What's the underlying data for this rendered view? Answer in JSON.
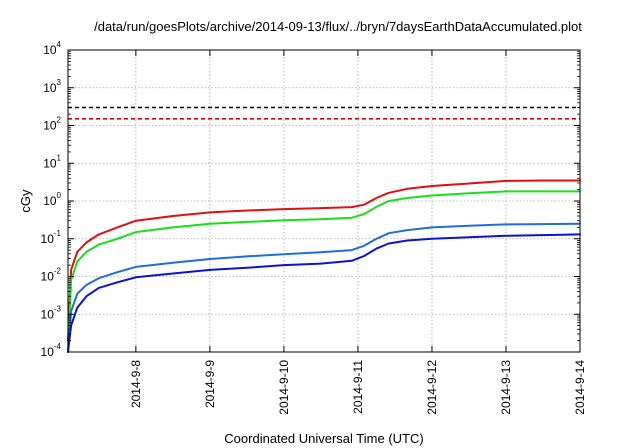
{
  "chart_data": {
    "type": "line",
    "title": "/data/run/goesPlots/archive/2014-09-13/flux/../bryn/7daysEarthDataAccumulated.plot",
    "xlabel": "Coordinated Universal Time (UTC)",
    "ylabel": "cGy",
    "xlim": [
      "2014-09-07T02:00",
      "2014-09-14T00:00"
    ],
    "ylim": [
      0.0001,
      10000
    ],
    "yscale": "log",
    "grid": true,
    "x_ticks": [
      "2014-9-8",
      "2014-9-9",
      "2014-9-10",
      "2014-9-11",
      "2014-9-12",
      "2014-9-13",
      "2014-9-14"
    ],
    "y_ticks": [
      {
        "base": "10",
        "exp": "-4"
      },
      {
        "base": "10",
        "exp": "-3"
      },
      {
        "base": "10",
        "exp": "-2"
      },
      {
        "base": "10",
        "exp": "-1"
      },
      {
        "base": "10",
        "exp": "0"
      },
      {
        "base": "10",
        "exp": "1"
      },
      {
        "base": "10",
        "exp": "2"
      },
      {
        "base": "10",
        "exp": "3"
      },
      {
        "base": "10",
        "exp": "4"
      }
    ],
    "reference_lines": [
      {
        "color": "#000000",
        "style": "dashed",
        "y": 300
      },
      {
        "color": "#e00000",
        "style": "dashed",
        "y": 150
      }
    ],
    "series": [
      {
        "color": "#e01010",
        "points": [
          [
            "2014-09-07T02:00",
            0.0002
          ],
          [
            "2014-09-07T03:00",
            0.015
          ],
          [
            "2014-09-07T05:00",
            0.045
          ],
          [
            "2014-09-07T08:00",
            0.08
          ],
          [
            "2014-09-07T12:00",
            0.13
          ],
          [
            "2014-09-07T18:00",
            0.2
          ],
          [
            "2014-09-08T00:00",
            0.3
          ],
          [
            "2014-09-08T12:00",
            0.4
          ],
          [
            "2014-09-09T00:00",
            0.5
          ],
          [
            "2014-09-09T12:00",
            0.56
          ],
          [
            "2014-09-10T00:00",
            0.61
          ],
          [
            "2014-09-10T12:00",
            0.65
          ],
          [
            "2014-09-10T22:00",
            0.69
          ],
          [
            "2014-09-11T02:00",
            0.8
          ],
          [
            "2014-09-11T06:00",
            1.2
          ],
          [
            "2014-09-11T10:00",
            1.65
          ],
          [
            "2014-09-11T16:00",
            2.1
          ],
          [
            "2014-09-12T00:00",
            2.5
          ],
          [
            "2014-09-12T12:00",
            2.9
          ],
          [
            "2014-09-13T00:00",
            3.4
          ],
          [
            "2014-09-13T12:00",
            3.5
          ],
          [
            "2014-09-14T00:00",
            3.5
          ]
        ]
      },
      {
        "color": "#18e018",
        "points": [
          [
            "2014-09-07T02:00",
            0.0001
          ],
          [
            "2014-09-07T03:00",
            0.008
          ],
          [
            "2014-09-07T05:00",
            0.025
          ],
          [
            "2014-09-07T08:00",
            0.045
          ],
          [
            "2014-09-07T12:00",
            0.07
          ],
          [
            "2014-09-07T18:00",
            0.1
          ],
          [
            "2014-09-08T00:00",
            0.15
          ],
          [
            "2014-09-08T12:00",
            0.2
          ],
          [
            "2014-09-09T00:00",
            0.25
          ],
          [
            "2014-09-09T12:00",
            0.28
          ],
          [
            "2014-09-10T00:00",
            0.31
          ],
          [
            "2014-09-10T12:00",
            0.33
          ],
          [
            "2014-09-10T22:00",
            0.36
          ],
          [
            "2014-09-11T02:00",
            0.45
          ],
          [
            "2014-09-11T06:00",
            0.7
          ],
          [
            "2014-09-11T10:00",
            1.0
          ],
          [
            "2014-09-11T16:00",
            1.2
          ],
          [
            "2014-09-12T00:00",
            1.4
          ],
          [
            "2014-09-12T12:00",
            1.6
          ],
          [
            "2014-09-13T00:00",
            1.8
          ],
          [
            "2014-09-13T12:00",
            1.8
          ],
          [
            "2014-09-14T00:00",
            1.8
          ]
        ]
      },
      {
        "color": "#1e6ee0",
        "points": [
          [
            "2014-09-07T02:00",
            0.0001
          ],
          [
            "2014-09-07T03:00",
            0.0012
          ],
          [
            "2014-09-07T05:00",
            0.0035
          ],
          [
            "2014-09-07T08:00",
            0.006
          ],
          [
            "2014-09-07T12:00",
            0.009
          ],
          [
            "2014-09-07T18:00",
            0.013
          ],
          [
            "2014-09-08T00:00",
            0.018
          ],
          [
            "2014-09-08T12:00",
            0.023
          ],
          [
            "2014-09-09T00:00",
            0.029
          ],
          [
            "2014-09-09T12:00",
            0.034
          ],
          [
            "2014-09-10T00:00",
            0.039
          ],
          [
            "2014-09-10T12:00",
            0.044
          ],
          [
            "2014-09-10T22:00",
            0.05
          ],
          [
            "2014-09-11T02:00",
            0.065
          ],
          [
            "2014-09-11T06:00",
            0.1
          ],
          [
            "2014-09-11T10:00",
            0.14
          ],
          [
            "2014-09-11T16:00",
            0.17
          ],
          [
            "2014-09-12T00:00",
            0.2
          ],
          [
            "2014-09-12T12:00",
            0.22
          ],
          [
            "2014-09-13T00:00",
            0.24
          ],
          [
            "2014-09-13T12:00",
            0.245
          ],
          [
            "2014-09-14T00:00",
            0.25
          ]
        ]
      },
      {
        "color": "#0a14d0",
        "points": [
          [
            "2014-09-07T02:00",
            0.0001
          ],
          [
            "2014-09-07T03:00",
            0.0005
          ],
          [
            "2014-09-07T05:00",
            0.0015
          ],
          [
            "2014-09-07T08:00",
            0.003
          ],
          [
            "2014-09-07T12:00",
            0.005
          ],
          [
            "2014-09-07T18:00",
            0.007
          ],
          [
            "2014-09-08T00:00",
            0.0095
          ],
          [
            "2014-09-08T12:00",
            0.012
          ],
          [
            "2014-09-09T00:00",
            0.015
          ],
          [
            "2014-09-09T12:00",
            0.017
          ],
          [
            "2014-09-10T00:00",
            0.02
          ],
          [
            "2014-09-10T12:00",
            0.022
          ],
          [
            "2014-09-10T22:00",
            0.026
          ],
          [
            "2014-09-11T02:00",
            0.035
          ],
          [
            "2014-09-11T06:00",
            0.055
          ],
          [
            "2014-09-11T10:00",
            0.075
          ],
          [
            "2014-09-11T16:00",
            0.09
          ],
          [
            "2014-09-12T00:00",
            0.1
          ],
          [
            "2014-09-12T12:00",
            0.11
          ],
          [
            "2014-09-13T00:00",
            0.12
          ],
          [
            "2014-09-13T12:00",
            0.125
          ],
          [
            "2014-09-14T00:00",
            0.13
          ]
        ]
      }
    ]
  }
}
